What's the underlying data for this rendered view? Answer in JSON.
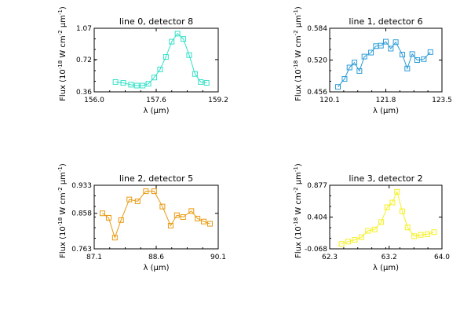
{
  "figure": {
    "background": "#ffffff",
    "axis_color": "#000000"
  },
  "chart_data": [
    {
      "type": "line",
      "title": "line 0, detector 8",
      "xlabel": "λ (μm)",
      "ylabel": "Flux (10^-18 W cm^-2 μm^-1)",
      "color": "#33e0c8",
      "marker": "square",
      "xlim": [
        156.0,
        159.2
      ],
      "ylim": [
        0.36,
        1.07
      ],
      "x_ticks": [
        "156.0",
        "157.6",
        "159.2"
      ],
      "y_ticks": [
        "0.36",
        "0.72",
        "1.07"
      ],
      "x": [
        156.55,
        156.75,
        156.95,
        157.1,
        157.25,
        157.4,
        157.55,
        157.7,
        157.85,
        158.0,
        158.15,
        158.3,
        158.45,
        158.6,
        158.75,
        158.9
      ],
      "y": [
        0.47,
        0.46,
        0.44,
        0.43,
        0.43,
        0.45,
        0.52,
        0.61,
        0.75,
        0.92,
        1.01,
        0.95,
        0.77,
        0.56,
        0.47,
        0.46
      ]
    },
    {
      "type": "line",
      "title": "line 1, detector 6",
      "xlabel": "λ (μm)",
      "ylabel": "Flux (10^-18 W cm^-2 μm^-1)",
      "color": "#2a9bd8",
      "marker": "square",
      "xlim": [
        120.1,
        123.5
      ],
      "ylim": [
        0.456,
        0.584
      ],
      "x_ticks": [
        "120.1",
        "121.8",
        "123.5"
      ],
      "y_ticks": [
        "0.456",
        "0.520",
        "0.584"
      ],
      "x": [
        120.35,
        120.55,
        120.7,
        120.85,
        121.0,
        121.15,
        121.35,
        121.5,
        121.65,
        121.8,
        121.95,
        122.1,
        122.3,
        122.45,
        122.6,
        122.75,
        122.95,
        123.15
      ],
      "y": [
        0.466,
        0.482,
        0.505,
        0.515,
        0.498,
        0.527,
        0.535,
        0.548,
        0.549,
        0.557,
        0.543,
        0.556,
        0.531,
        0.503,
        0.532,
        0.52,
        0.522,
        0.536
      ]
    },
    {
      "type": "line",
      "title": "line 2, detector 5",
      "xlabel": "λ (μm)",
      "ylabel": "Flux (10^-18 W cm^-2 μm^-1)",
      "color": "#e89a10",
      "marker": "square",
      "xlim": [
        87.1,
        90.1
      ],
      "ylim": [
        0.763,
        0.933
      ],
      "x_ticks": [
        "87.1",
        "88.6",
        "90.1"
      ],
      "y_ticks": [
        "0.763",
        "0.858",
        "0.933"
      ],
      "x": [
        87.3,
        87.45,
        87.6,
        87.75,
        87.95,
        88.15,
        88.35,
        88.55,
        88.75,
        88.95,
        89.1,
        89.25,
        89.45,
        89.6,
        89.75,
        89.9
      ],
      "y": [
        0.858,
        0.846,
        0.793,
        0.84,
        0.895,
        0.89,
        0.917,
        0.917,
        0.876,
        0.825,
        0.853,
        0.848,
        0.864,
        0.844,
        0.836,
        0.83
      ]
    },
    {
      "type": "line",
      "title": "line 3, detector 2",
      "xlabel": "λ (μm)",
      "ylabel": "Flux (10^-18 W cm^-2 μm^-1)",
      "color": "#f5f020",
      "marker": "square",
      "xlim": [
        62.3,
        64.0
      ],
      "ylim": [
        -0.068,
        0.877
      ],
      "x_ticks": [
        "62.3",
        "63.2",
        "64.0"
      ],
      "y_ticks": [
        "-0.068",
        "0.404",
        "0.877"
      ],
      "x": [
        62.48,
        62.58,
        62.68,
        62.78,
        62.88,
        62.98,
        63.08,
        63.17,
        63.25,
        63.32,
        63.4,
        63.48,
        63.58,
        63.68,
        63.78,
        63.88
      ],
      "y": [
        0.005,
        0.04,
        0.065,
        0.105,
        0.2,
        0.22,
        0.33,
        0.55,
        0.62,
        0.78,
        0.49,
        0.25,
        0.12,
        0.14,
        0.15,
        0.18
      ]
    }
  ]
}
